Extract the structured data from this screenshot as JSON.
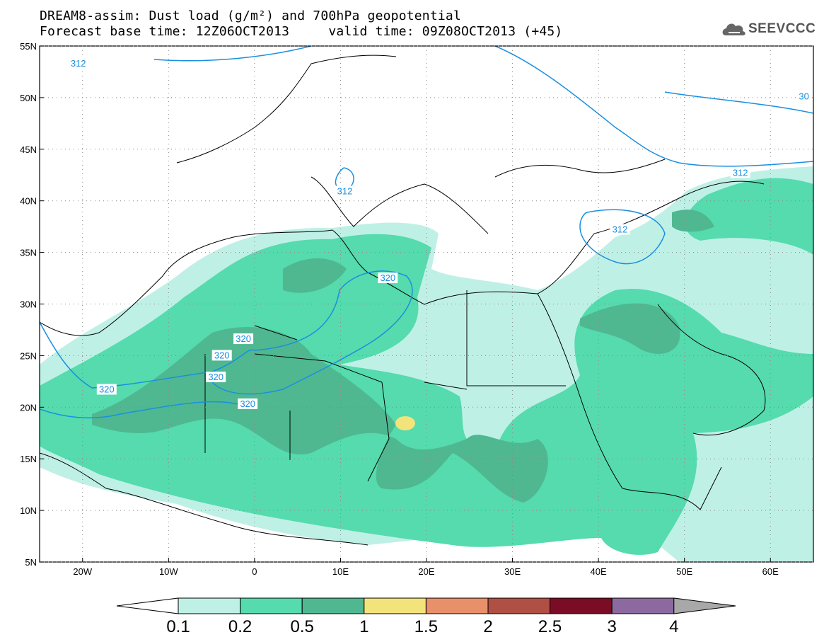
{
  "title": {
    "line1": "DREAM8-assim: Dust load (g/m²) and 700hPa geopotential",
    "line2": "Forecast base time: 12Z06OCT2013     valid time: 09Z08OCT2013 (+45)"
  },
  "logo": {
    "text": "SEEVCCC",
    "icon": "cloud-icon"
  },
  "map": {
    "lat_labels": [
      "55N",
      "50N",
      "45N",
      "40N",
      "35N",
      "30N",
      "25N",
      "20N",
      "15N",
      "10N",
      "5N"
    ],
    "lon_labels": [
      "20W",
      "10W",
      "0",
      "10E",
      "20E",
      "30E",
      "40E",
      "50E",
      "60E"
    ],
    "lat_values": [
      55,
      50,
      45,
      40,
      35,
      30,
      25,
      20,
      15,
      10,
      5
    ],
    "lon_values": [
      -20,
      -10,
      0,
      10,
      20,
      30,
      40,
      50,
      60
    ],
    "lon_range": [
      -25,
      65
    ],
    "lat_range": [
      5,
      55
    ],
    "dust_colors": [
      "#bff0e6",
      "#55dbad",
      "#4fb891",
      "#f2e47a",
      "#e8906a",
      "#b05045",
      "#7a0d25",
      "#8c6aa0"
    ],
    "contour_color": "#1a8fe0",
    "contour_labels": [
      {
        "text": "312",
        "lon": -20.5,
        "lat": 53.3
      },
      {
        "text": "312",
        "lon": 10.5,
        "lat": 40.9
      },
      {
        "text": "312",
        "lon": 42.5,
        "lat": 37.2
      },
      {
        "text": "312",
        "lon": 56.5,
        "lat": 42.7
      },
      {
        "text": "30",
        "lon": 63.9,
        "lat": 50.1
      },
      {
        "text": "320",
        "lon": 15.5,
        "lat": 32.5
      },
      {
        "text": "320",
        "lon": -1.3,
        "lat": 26.6
      },
      {
        "text": "320",
        "lon": -3.8,
        "lat": 25.0
      },
      {
        "text": "320",
        "lon": -4.5,
        "lat": 22.9
      },
      {
        "text": "320",
        "lon": -17.2,
        "lat": 21.7
      },
      {
        "text": "320",
        "lon": -0.8,
        "lat": 20.3
      }
    ]
  },
  "colorbar": {
    "labels": [
      "0.1",
      "0.2",
      "0.5",
      "1",
      "1.5",
      "2",
      "2.5",
      "3",
      "4"
    ],
    "colors": [
      "#bff0e6",
      "#55dbad",
      "#4fb891",
      "#f2e47a",
      "#e8906a",
      "#b05045",
      "#7a0d25",
      "#8c6aa0"
    ],
    "under_color": "#ffffff",
    "over_color": "#a8a8a8"
  }
}
